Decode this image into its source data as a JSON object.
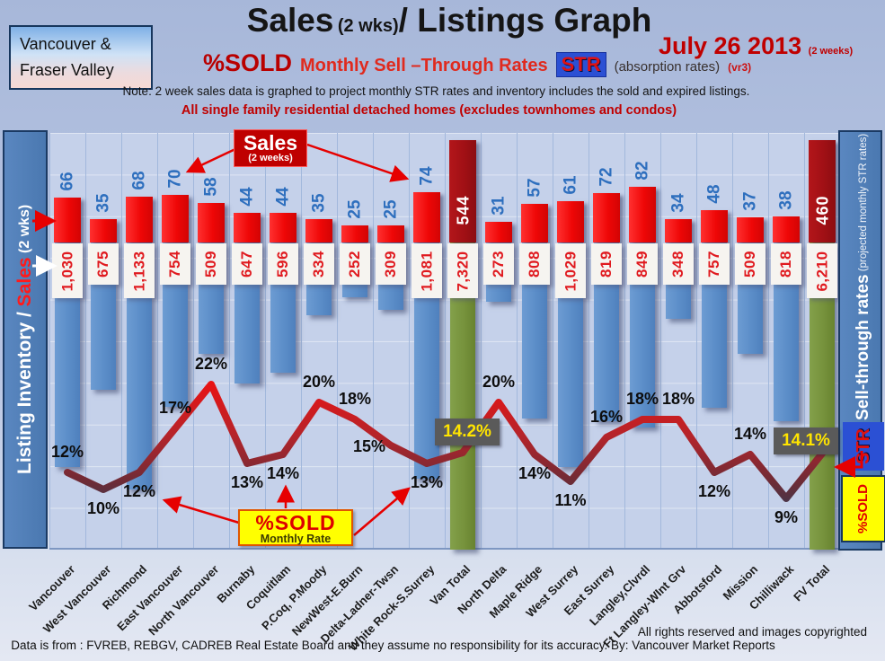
{
  "header": {
    "region_line1": "Vancouver &",
    "region_line2": "Fraser Valley",
    "title_big1": "Sales",
    "title_small": "(2 wks)",
    "title_big2": "/ Listings Graph",
    "date": "July 26 2013",
    "date_suffix": "(2 weeks)",
    "sub_pct": "%SOLD",
    "sub_mid": "Monthly Sell –Through Rates",
    "sub_str": "STR",
    "sub_abs": "(absorption rates)",
    "sub_ver": "(vr3)",
    "note": "Note: 2 week sales data is graphed to project monthly STR rates and inventory includes the sold and expired listings.",
    "scope": "All single family residential detached homes (excludes townhomes and condos)"
  },
  "left_axis": {
    "part1": "Listing Inventory / ",
    "part_red": "Sales",
    "part2": " (2  wks)"
  },
  "right_axis": {
    "bold": "Sell-through rates",
    "small": " (projected monthly STR rates)",
    "str_badge": "STR",
    "pct_sold_badge": "%SOLD"
  },
  "annotations": {
    "sales_box_line1": "Sales",
    "sales_box_line2": "(2 weeks)",
    "pct_box_line1": "%SOLD",
    "pct_box_line2": "Monthly Rate",
    "van_total_str": "14.2%",
    "fv_total_str": "14.1%"
  },
  "footer": {
    "rights": "All rights reserved and  images copyrighted",
    "source": "Data is from : FVREB, REBGV, CADREB Real Estate Board and they assume no responsibility for its accuracy. By: Vancouver Market Reports"
  },
  "chart_data": {
    "type": "bar",
    "subtype": "combo bar+line",
    "title": "Sales (2 wks) / Listings Graph",
    "date": "July 26 2013",
    "categories": [
      "Vancouver",
      "West Vancouver",
      "Richmond",
      "East Vancouver",
      "North Vancouver",
      "Burnaby",
      "Coquitlam",
      "P.Coq, P.Moody",
      "NewWest-E.Burn",
      "Delta-Ladner-Twsn",
      "White Rock-S.Surrey",
      "Van Total",
      "North Delta",
      "Maple Ridge",
      "West Surrey",
      "East Surrey",
      "Langley,Clvrdl",
      "Ft Langley-WInt Grv",
      "Abbotsford",
      "Mission",
      "Chilliwack",
      "FV Total"
    ],
    "series": [
      {
        "name": "Sales (2 weeks)",
        "type": "bar",
        "values": [
          66,
          35,
          68,
          70,
          58,
          44,
          44,
          35,
          25,
          25,
          74,
          544,
          31,
          57,
          61,
          72,
          82,
          34,
          48,
          37,
          38,
          460
        ]
      },
      {
        "name": "Listing Inventory",
        "type": "bar",
        "values": [
          1030,
          675,
          1133,
          754,
          509,
          647,
          596,
          334,
          252,
          309,
          1081,
          7320,
          273,
          808,
          1029,
          819,
          849,
          348,
          757,
          509,
          818,
          6210
        ]
      },
      {
        "name": "%SOLD Monthly Sell-Through Rate (STR)",
        "type": "line",
        "values": [
          12,
          10,
          12,
          17,
          22,
          13,
          14,
          20,
          18,
          15,
          13,
          14.2,
          20,
          14,
          11,
          16,
          18,
          18,
          12,
          14,
          9,
          14.1
        ]
      }
    ],
    "total_indices": [
      11,
      21
    ],
    "pct_label_positions": [
      "above",
      "below",
      "below",
      "above",
      "above",
      "below",
      "below",
      "above",
      "above",
      "left",
      "below",
      "badge",
      "above",
      "below",
      "below",
      "above",
      "above",
      "above",
      "below",
      "above",
      "below",
      "badge"
    ],
    "legend_position": "none",
    "grid": true,
    "colors": {
      "sales_bar": "#ef0707",
      "sales_total_bar": "#a11015",
      "inventory_bar": "#5b8dc8",
      "inventory_total_bar": "#76923c",
      "line_high": "#ee1111",
      "line_low": "#333a52",
      "sales_value_text": "#2e6fbe",
      "inventory_value_text": "#e01a1f",
      "str_badge_bg": "#5a5a5a",
      "str_badge_text": "#ffe400",
      "accent_red": "#c00000",
      "sidebar_blue": "#4a78b0"
    }
  }
}
